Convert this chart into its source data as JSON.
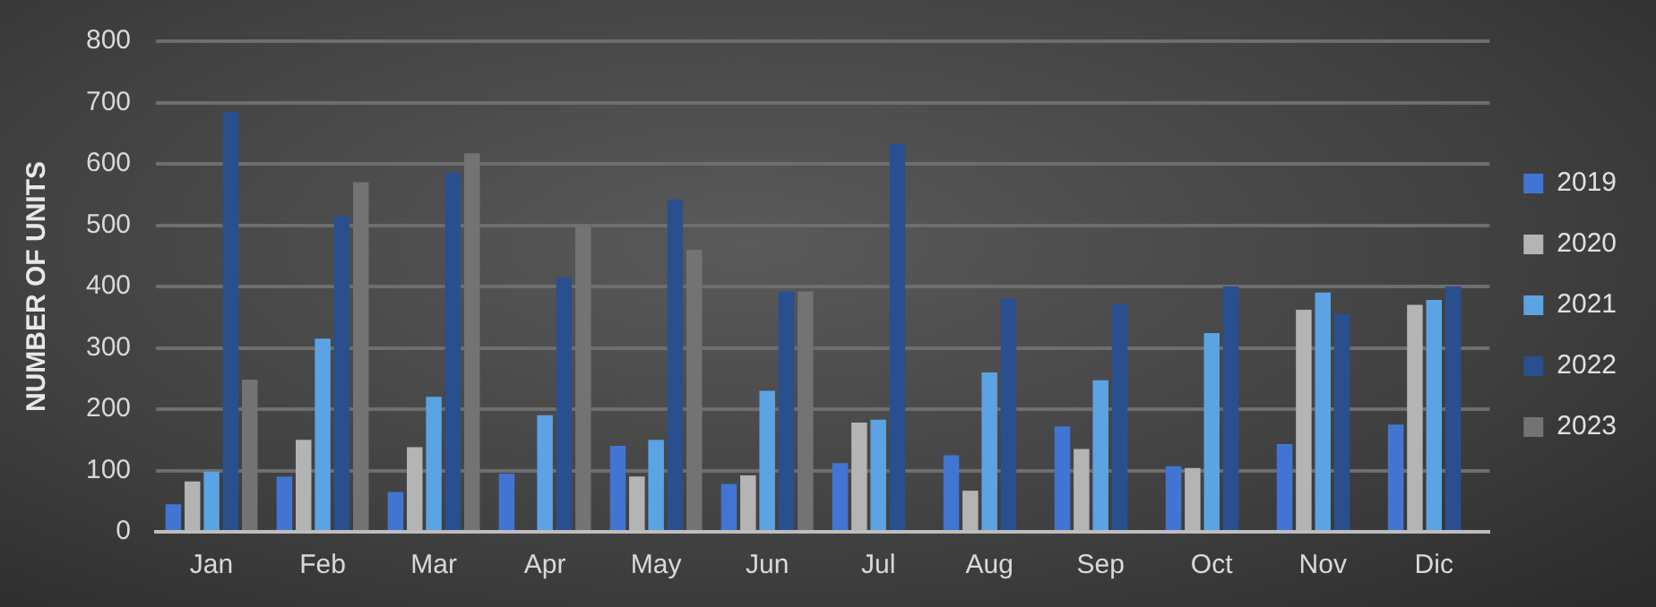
{
  "chart_data": {
    "type": "bar",
    "ylabel": "NUMBER OF UNITS",
    "categories": [
      "Jan",
      "Feb",
      "Mar",
      "Apr",
      "May",
      "Jun",
      "Jul",
      "Aug",
      "Sep",
      "Oct",
      "Nov",
      "Dic"
    ],
    "series": [
      {
        "name": "2019",
        "color": "#4275d3",
        "values": [
          45,
          90,
          65,
          95,
          140,
          78,
          112,
          125,
          172,
          107,
          143,
          175
        ]
      },
      {
        "name": "2020",
        "color": "#b4b4b4",
        "values": [
          82,
          150,
          138,
          null,
          90,
          92,
          178,
          67,
          135,
          104,
          362,
          370
        ]
      },
      {
        "name": "2021",
        "color": "#5ba3e3",
        "values": [
          98,
          315,
          220,
          190,
          150,
          230,
          183,
          260,
          247,
          324,
          390,
          378
        ]
      },
      {
        "name": "2022",
        "color": "#2a4f8f",
        "values": [
          685,
          515,
          585,
          415,
          542,
          392,
          632,
          380,
          372,
          400,
          355,
          400
        ]
      },
      {
        "name": "2023",
        "color": "#737373",
        "values": [
          248,
          570,
          617,
          500,
          460,
          392,
          null,
          null,
          null,
          null,
          null,
          null
        ]
      }
    ],
    "ylim": [
      0,
      800
    ],
    "yticks": [
      0,
      100,
      200,
      300,
      400,
      500,
      600,
      700,
      800
    ],
    "grid": "y",
    "legend": "right"
  }
}
